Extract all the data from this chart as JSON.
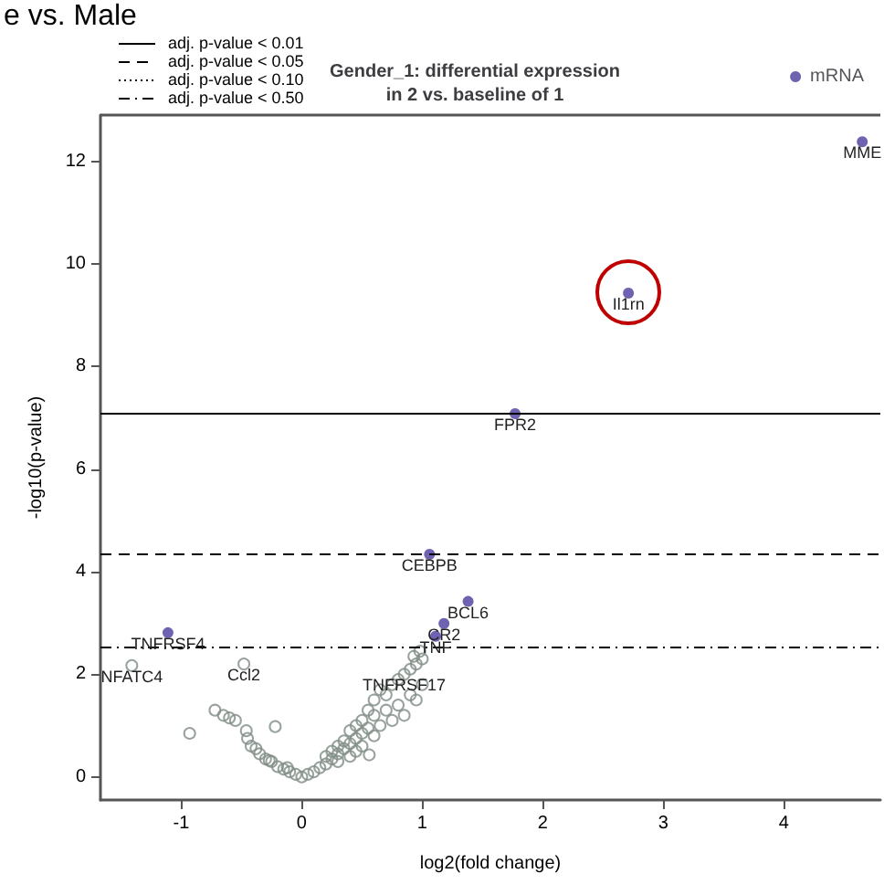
{
  "chart_data": {
    "type": "scatter",
    "title": "Gender_1: differential expression\nin 2 vs. baseline of 1",
    "xlabel": "log2(fold change)",
    "ylabel": "-log10(p-value)",
    "annotations": [
      "e vs. Male",
      {
        "text": "MME",
        "x": 4.65,
        "y": 12.38
      },
      {
        "text": "Il1rn",
        "x": 2.71,
        "y": 9.43
      },
      {
        "text": "FPR2",
        "x": 1.77,
        "y": 7.08
      },
      {
        "text": "CEBPB",
        "x": 1.06,
        "y": 4.34
      },
      {
        "text": "BCL6",
        "x": 1.38,
        "y": 3.42
      },
      {
        "text": "CR2",
        "x": 1.18,
        "y": 2.99
      },
      {
        "text": "TNF",
        "x": 1.11,
        "y": 2.74
      },
      {
        "text": "TNFRSF4",
        "x": -1.11,
        "y": 2.81
      },
      {
        "text": "NFATC4",
        "x": -1.41,
        "y": 2.17
      },
      {
        "text": "Ccl2",
        "x": -0.48,
        "y": 2.2
      },
      {
        "text": "TNFRSF17",
        "x": 0.85,
        "y": 2.0
      }
    ],
    "series": [
      {
        "name": "mRNA",
        "color": "#4a3c9c",
        "marker": "circle",
        "x": [
          4.65,
          2.71,
          1.77,
          1.06,
          1.38,
          1.18,
          1.11,
          -1.11
        ],
        "values": [
          12.38,
          9.43,
          7.08,
          4.34,
          3.42,
          2.99,
          2.74,
          2.81
        ]
      },
      {
        "color": "#7f8c84",
        "marker": "circle",
        "x": [
          -1.41,
          -0.48,
          -0.93,
          -0.72,
          -0.65,
          -0.6,
          -0.55,
          -0.46,
          -0.45,
          -0.42,
          -0.38,
          -0.35,
          -0.3,
          -0.27,
          -0.25,
          -0.22,
          -0.2,
          -0.15,
          -0.12,
          -0.1,
          -0.05,
          0,
          0.05,
          0.1,
          0.15,
          0.2,
          0.25,
          0.3,
          0.35,
          0.4,
          0.45,
          0.5,
          0.55,
          0.56,
          0.5,
          0.55,
          0.6,
          0.65,
          0.7,
          0.75,
          0.8,
          0.85,
          0.9,
          0.95,
          1.0,
          0.6,
          0.7,
          0.8,
          0.9,
          0.95,
          1.0,
          0.65,
          0.75,
          0.85,
          0.45,
          0.4,
          0.35,
          0.3,
          0.25,
          0.2,
          0.6,
          0.5,
          0.45,
          0.4,
          0.3,
          0.93,
          0.98
        ],
        "values": [
          2.17,
          2.2,
          0.85,
          1.3,
          1.2,
          1.15,
          1.1,
          0.9,
          0.75,
          0.6,
          0.55,
          0.45,
          0.35,
          0.32,
          0.3,
          0.98,
          0.2,
          0.15,
          0.18,
          0.1,
          0.05,
          0,
          0.05,
          0.1,
          0.18,
          0.25,
          0.35,
          0.45,
          0.55,
          0.65,
          0.75,
          0.85,
          0.95,
          0.43,
          1.1,
          1.3,
          1.5,
          1.7,
          1.6,
          1.8,
          1.9,
          2.0,
          2.1,
          2.2,
          2.3,
          1.2,
          1.3,
          1.4,
          1.6,
          1.5,
          1.8,
          1.0,
          1.1,
          1.2,
          1.0,
          0.9,
          0.7,
          0.6,
          0.5,
          0.4,
          0.8,
          0.6,
          0.5,
          0.4,
          0.3,
          2.35,
          2.45
        ]
      }
    ],
    "ref_lines": [
      {
        "axis": "y",
        "value": 7.09,
        "label": "adj. p-value < 0.01",
        "line_style": "solid"
      },
      {
        "axis": "y",
        "value": 4.34,
        "label": "adj. p-value < 0.05",
        "line_style": "dashed"
      },
      {
        "value": null,
        "label": "adj. p-value < 0.10",
        "line_style": "dotted"
      },
      {
        "axis": "y",
        "value": 2.53,
        "label": "adj. p-value < 0.50",
        "line_style": "dashdot"
      }
    ],
    "xlim": [
      -1.67,
      4.8
    ],
    "xticks": [
      -1,
      0,
      1,
      2,
      3,
      4
    ],
    "ylim": [
      -0.45,
      12.9
    ],
    "yticks": [
      0,
      2,
      4,
      6,
      8,
      10,
      12
    ],
    "grid": false,
    "legend": "top right"
  }
}
